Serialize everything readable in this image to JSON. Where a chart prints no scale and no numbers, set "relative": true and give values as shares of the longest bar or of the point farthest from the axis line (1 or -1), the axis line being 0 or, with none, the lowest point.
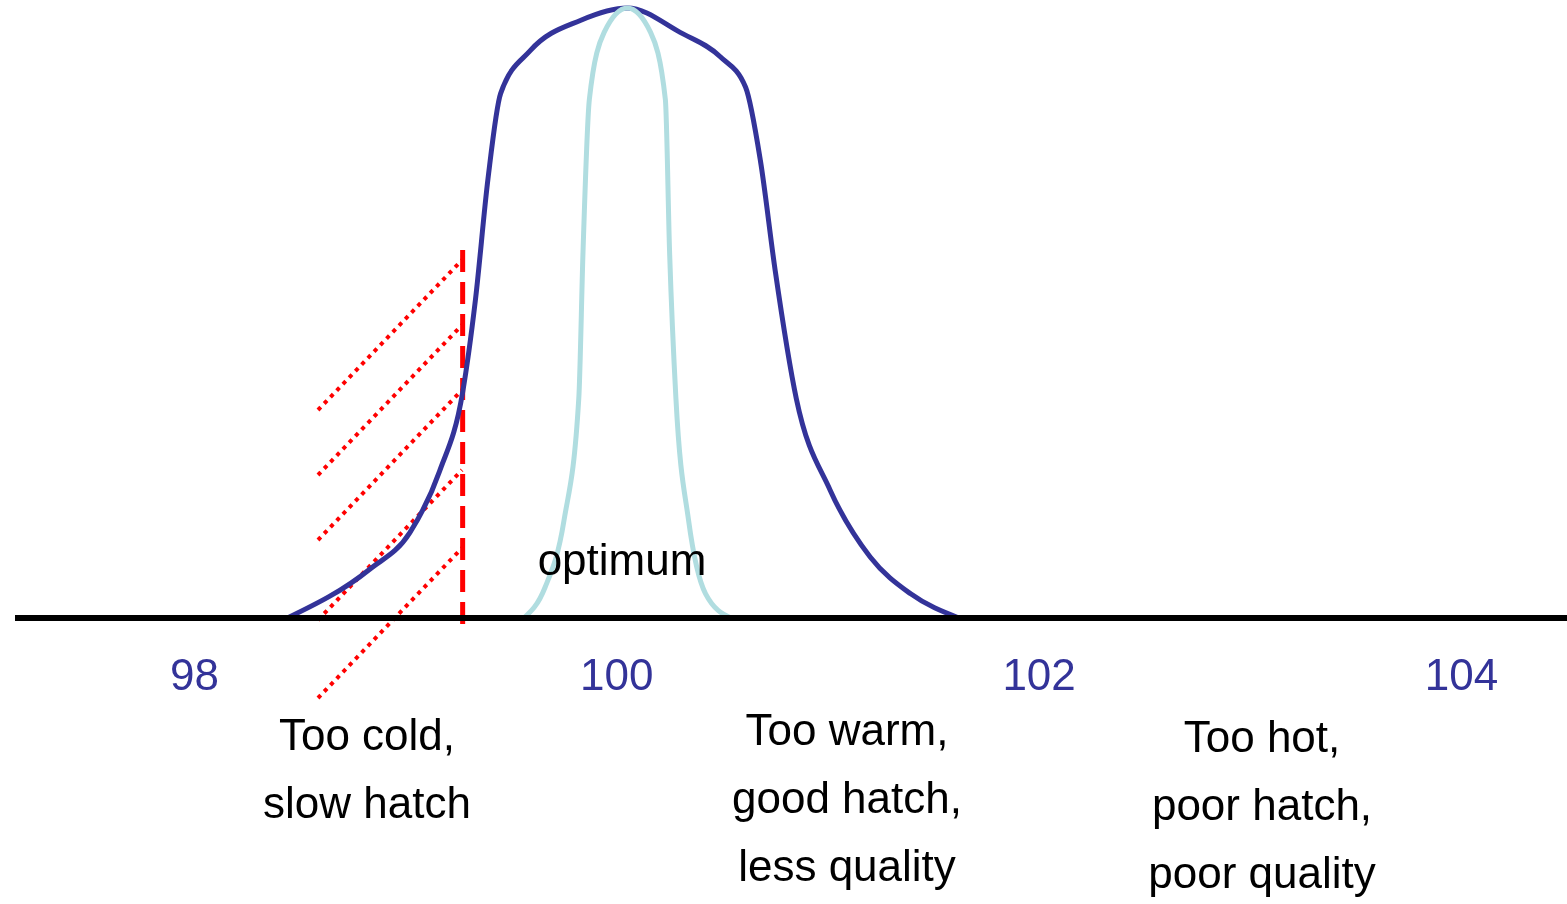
{
  "chart_data": {
    "type": "line",
    "relative": true,
    "xlim": [
      97.15,
      104.5
    ],
    "xticks": [
      98,
      100,
      102,
      104
    ],
    "tick_labels": "x",
    "grid": false,
    "line_style": "solid",
    "series": [
      {
        "color": "#333399",
        "x": [
          98.44,
          98.83,
          99.02,
          99.16,
          99.27,
          99.33,
          99.39,
          99.45,
          99.59,
          99.83,
          100.05,
          100.3,
          100.49,
          100.61,
          100.68,
          100.75,
          100.85,
          101.01,
          101.2,
          101.39,
          101.62
        ],
        "values": [
          0,
          0.08,
          0.14,
          0.24,
          0.37,
          0.52,
          0.72,
          0.86,
          0.93,
          0.98,
          1,
          0.96,
          0.92,
          0.87,
          0.75,
          0.57,
          0.36,
          0.21,
          0.1,
          0.04,
          0
        ]
      },
      {
        "color": "#b0dde0",
        "x": [
          99.56,
          99.66,
          99.75,
          99.82,
          99.84,
          99.87,
          99.94,
          100.05,
          100.16,
          100.23,
          100.25,
          100.28,
          100.34,
          100.42,
          100.54
        ],
        "values": [
          0,
          0.05,
          0.16,
          0.36,
          0.6,
          0.85,
          0.96,
          1,
          0.96,
          0.85,
          0.6,
          0.36,
          0.16,
          0.04,
          0
        ]
      }
    ],
    "ref_lines": [
      {
        "axis": "x",
        "value": 99.27,
        "color": "#ff0000",
        "line_style": "dashed"
      }
    ],
    "annotations": [
      "optimum",
      "Too cold,\nslow hatch",
      "Too warm,\ngood hatch,\nless quality",
      "Too hot,\npoor hatch,\npoor quality"
    ]
  }
}
